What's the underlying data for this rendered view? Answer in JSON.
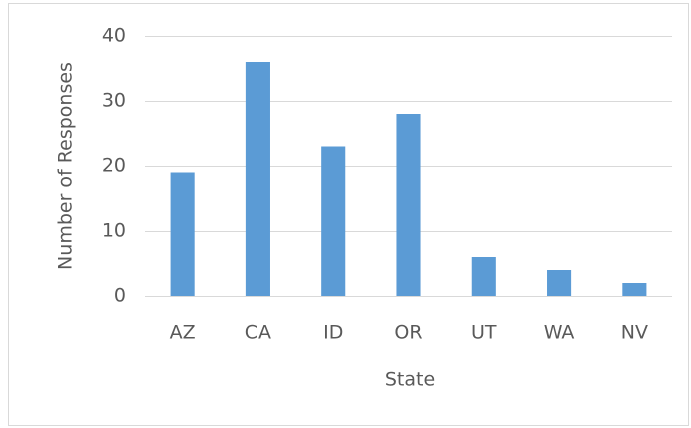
{
  "chart_data": {
    "type": "bar",
    "categories": [
      "AZ",
      "CA",
      "ID",
      "OR",
      "UT",
      "WA",
      "NV"
    ],
    "values": [
      19,
      36,
      23,
      28,
      6,
      4,
      2
    ],
    "color": "#5b9bd5",
    "xlabel": "State",
    "ylabel": "Number of Responses",
    "ylim": [
      0,
      40
    ],
    "yticks": [
      0,
      10,
      20,
      30,
      40
    ],
    "grid": true
  }
}
